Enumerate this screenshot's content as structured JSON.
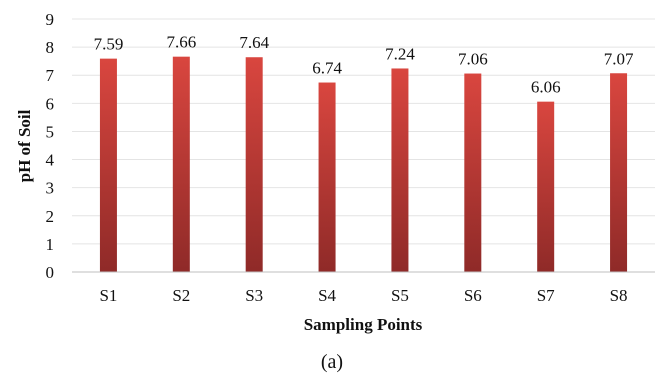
{
  "chart_data": {
    "type": "bar",
    "categories": [
      "S1",
      "S2",
      "S3",
      "S4",
      "S5",
      "S6",
      "S7",
      "S8"
    ],
    "values": [
      7.59,
      7.66,
      7.64,
      6.74,
      7.24,
      7.06,
      6.06,
      7.07
    ],
    "data_labels": [
      "7.59",
      "7.66",
      "7.64",
      "6.74",
      "7.24",
      "7.06",
      "6.06",
      "7.07"
    ],
    "xlabel": "Sampling Points",
    "ylabel": "pH of Soil",
    "ylim": [
      0,
      9
    ],
    "yticks": [
      "0",
      "1",
      "2",
      "3",
      "4",
      "5",
      "6",
      "7",
      "8",
      "9"
    ],
    "grid": true,
    "legend": "none",
    "bar_color_top": "#d9463f",
    "bar_color_bottom": "#8f2a28"
  },
  "caption": "(a)"
}
